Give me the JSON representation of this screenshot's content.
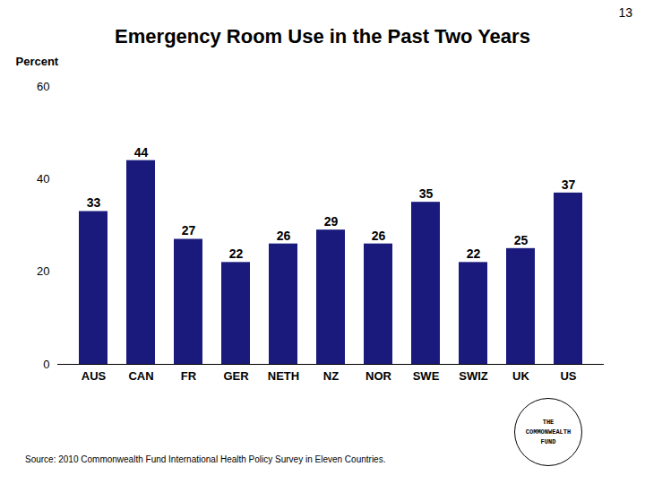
{
  "chart_data": {
    "type": "bar",
    "title": "Emergency Room Use in the Past Two Years",
    "ylabel": "Percent",
    "categories": [
      "AUS",
      "CAN",
      "FR",
      "GER",
      "NETH",
      "NZ",
      "NOR",
      "SWE",
      "SWIZ",
      "UK",
      "US"
    ],
    "values": [
      33,
      44,
      27,
      22,
      26,
      29,
      26,
      35,
      22,
      25,
      37
    ],
    "color": "#1a1a7c",
    "ylim": [
      0,
      60
    ],
    "yticks": [
      0,
      20,
      40,
      60
    ],
    "grid": false,
    "data_labels": true,
    "annotations": [
      "13",
      "Source: 2010 Commonwealth Fund International Health Policy Survey in Eleven Countries.",
      "THE",
      "COMMONWEALTH",
      "FUND"
    ]
  }
}
